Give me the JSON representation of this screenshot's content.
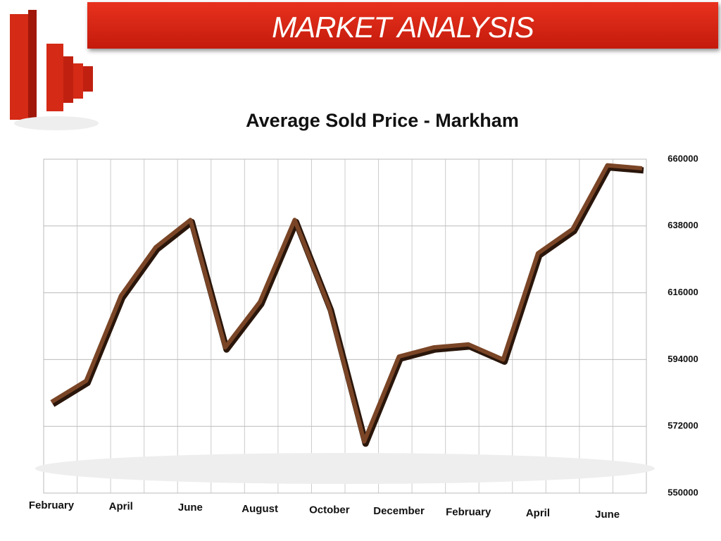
{
  "header": {
    "title": "MARKET ANALYSIS"
  },
  "chart_data": {
    "type": "line",
    "title": "Average Sold Price - Markham",
    "categories": [
      "February",
      null,
      "April",
      null,
      "June",
      null,
      "August",
      null,
      "October",
      null,
      "December",
      null,
      "February",
      null,
      "April",
      null,
      "June",
      null
    ],
    "series": [
      {
        "name": "Average Sold Price",
        "color": "#7a4526",
        "values": [
          580000,
          587000,
          615000,
          631000,
          640000,
          598000,
          613000,
          640000,
          611000,
          567000,
          595000,
          598000,
          599000,
          594000,
          629000,
          637000,
          658000,
          657000
        ]
      }
    ],
    "ylim": [
      550000,
      660000
    ],
    "yticks": [
      550000,
      572000,
      594000,
      616000,
      638000,
      660000
    ],
    "grid": true
  }
}
